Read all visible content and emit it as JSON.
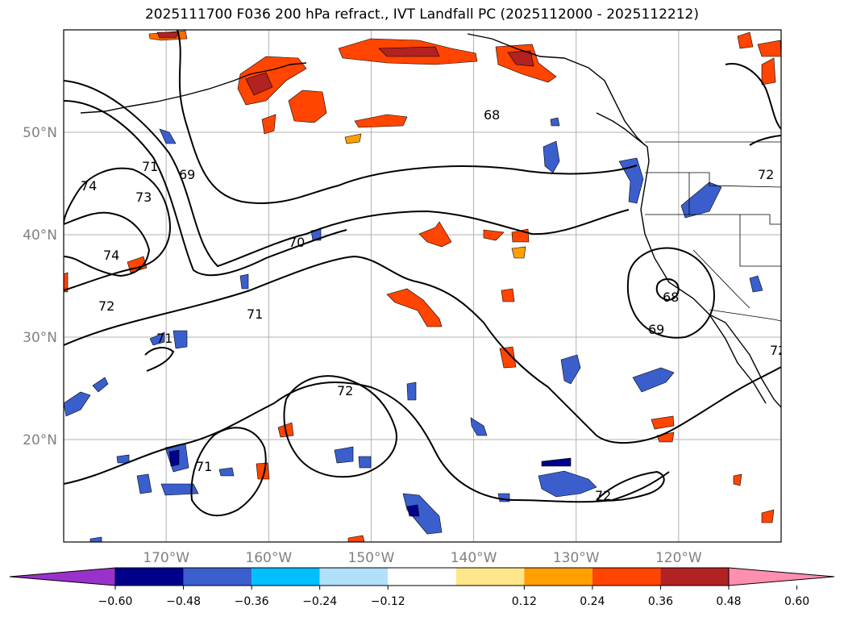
{
  "title": "2025111700 F036 200 hPa refract., IVT Landfall PC (2025112000 - 2025112212)",
  "map": {
    "lon_range": [
      -180,
      -110
    ],
    "lat_range": [
      10,
      60
    ],
    "lat_ticks": [
      {
        "value": 20,
        "label": "20°N"
      },
      {
        "value": 30,
        "label": "30°N"
      },
      {
        "value": 40,
        "label": "40°N"
      },
      {
        "value": 50,
        "label": "50°N"
      }
    ],
    "lon_ticks": [
      {
        "value": -170,
        "label": "170°W"
      },
      {
        "value": -160,
        "label": "160°W"
      },
      {
        "value": -150,
        "label": "150°W"
      },
      {
        "value": -140,
        "label": "140°W"
      },
      {
        "value": -130,
        "label": "130°W"
      },
      {
        "value": -120,
        "label": "120°W"
      }
    ],
    "contour_labels": [
      "68",
      "69",
      "70",
      "71",
      "72",
      "73",
      "74"
    ]
  },
  "colorbar": {
    "ticks": [
      "−0.60",
      "−0.48",
      "−0.36",
      "−0.24",
      "−0.12",
      "0.12",
      "0.24",
      "0.36",
      "0.48",
      "0.60"
    ],
    "colors": [
      "#9932cc",
      "#00008b",
      "#3a5fcd",
      "#00bfff",
      "#b0e0fa",
      "#ffffff",
      "#ffe68a",
      "#ffa000",
      "#ff4500",
      "#b22222",
      "#ff8fb0"
    ]
  }
}
